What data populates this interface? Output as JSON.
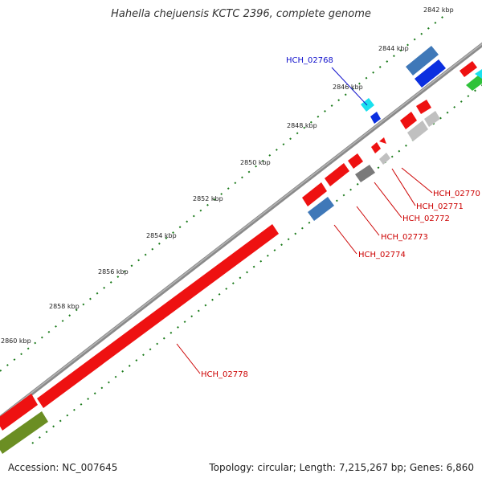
{
  "header": {
    "title": "Hahella chejuensis KCTC 2396, complete genome"
  },
  "footer": {
    "accession": "Accession: NC_007645",
    "stats": "Topology: circular; Length: 7,215,267 bp; Genes: 6,860"
  },
  "scale": {
    "labels": [
      "2842 kbp",
      "2844 kbp",
      "2846 kbp",
      "2848 kbp",
      "2850 kbp",
      "2852 kbp",
      "2854 kbp",
      "2856 kbp",
      "2858 kbp",
      "2860 kbp"
    ]
  },
  "gene_labels": {
    "HCH_02768": "HCH_02768",
    "HCH_02770": "HCH_02770",
    "HCH_02771": "HCH_02771",
    "HCH_02772": "HCH_02772",
    "HCH_02773": "HCH_02773",
    "HCH_02774": "HCH_02774",
    "HCH_02778": "HCH_02778"
  },
  "colors": {
    "backbone": "#8a8a8a",
    "gene_red": "#ee1111",
    "gene_blue": "#0b2fe0",
    "gene_steelblue": "#3f78b8",
    "gene_cyan": "#19e0ee",
    "gene_gray": "#7a7a7a",
    "gene_lightgray": "#c0c0c0",
    "gene_green": "#2fc23a",
    "gene_olive": "#6b8e23",
    "tick_green": "#1a7a1a",
    "label_blue": "#1111cc",
    "label_red": "#cc0000"
  }
}
